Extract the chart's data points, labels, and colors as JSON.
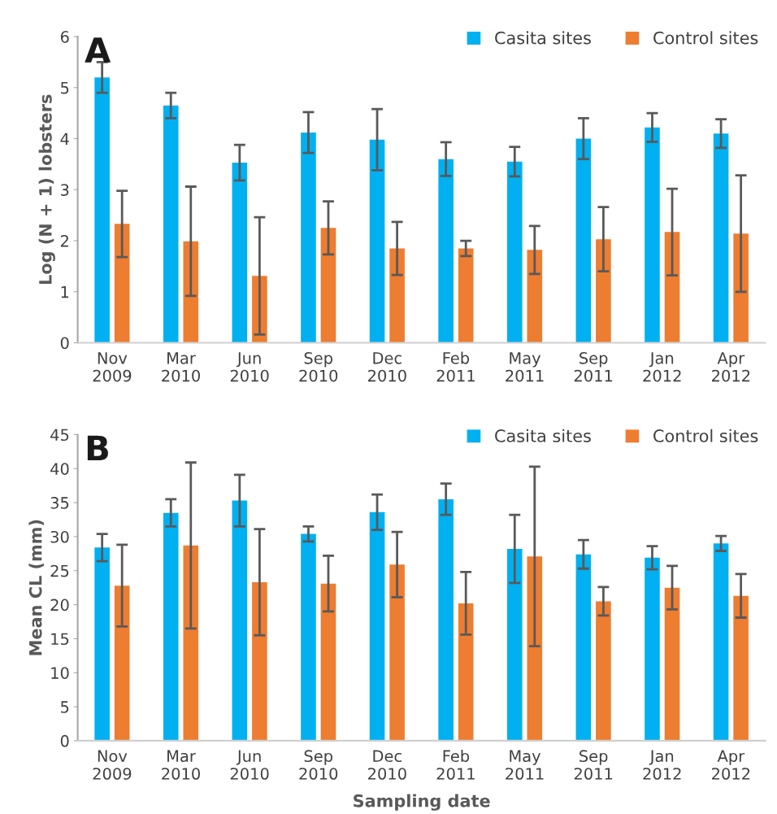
{
  "chart_data": [
    {
      "type": "bar",
      "title": "A",
      "ylabel": "Log (N + 1) lobsters",
      "categories": [
        "Nov\n2009",
        "Mar\n2010",
        "Jun\n2010",
        "Sep\n2010",
        "Dec\n2010",
        "Feb\n2011",
        "May\n2011",
        "Sep\n2011",
        "Jan\n2012",
        "Apr\n2012"
      ],
      "series": [
        {
          "name": "Casita sites",
          "color": "#00b0f0",
          "values": [
            5.2,
            4.65,
            3.53,
            4.12,
            3.98,
            3.6,
            3.55,
            4.0,
            4.22,
            4.1
          ],
          "errors": [
            0.3,
            0.25,
            0.35,
            0.4,
            0.6,
            0.33,
            0.29,
            0.4,
            0.28,
            0.28
          ]
        },
        {
          "name": "Control sites",
          "color": "#ed7d31",
          "values": [
            2.33,
            1.99,
            1.31,
            2.25,
            1.85,
            1.85,
            1.82,
            2.03,
            2.17,
            2.14
          ],
          "errors": [
            0.65,
            1.07,
            1.15,
            0.52,
            0.52,
            0.15,
            0.47,
            0.63,
            0.85,
            1.14
          ]
        }
      ],
      "ylim": [
        0,
        6
      ],
      "yticks": [
        0,
        1,
        2,
        3,
        4,
        5,
        6
      ],
      "legend": "top right",
      "grid": false
    },
    {
      "type": "bar",
      "title": "B",
      "ylabel": "Mean CL (mm)",
      "xlabel": "Sampling date",
      "categories": [
        "Nov\n2009",
        "Mar\n2010",
        "Jun\n2010",
        "Sep\n2010",
        "Dec\n2010",
        "Feb\n2011",
        "May\n2011",
        "Sep\n2011",
        "Jan\n2012",
        "Apr\n2012"
      ],
      "series": [
        {
          "name": "Casita sites",
          "color": "#00b0f0",
          "values": [
            28.4,
            33.5,
            35.3,
            30.4,
            33.6,
            35.5,
            28.2,
            27.4,
            26.9,
            29.0
          ],
          "errors": [
            2.0,
            2.0,
            3.8,
            1.1,
            2.6,
            2.3,
            5.0,
            2.1,
            1.7,
            1.1
          ]
        },
        {
          "name": "Control sites",
          "color": "#ed7d31",
          "values": [
            22.8,
            28.7,
            23.3,
            23.1,
            25.9,
            20.2,
            27.1,
            20.5,
            22.5,
            21.3
          ],
          "errors": [
            6.0,
            12.2,
            7.8,
            4.1,
            4.8,
            4.6,
            13.2,
            2.1,
            3.2,
            3.2
          ]
        }
      ],
      "ylim": [
        0,
        45
      ],
      "yticks": [
        0,
        5,
        10,
        15,
        20,
        25,
        30,
        35,
        40,
        45
      ],
      "legend": "top right",
      "grid": false
    }
  ]
}
